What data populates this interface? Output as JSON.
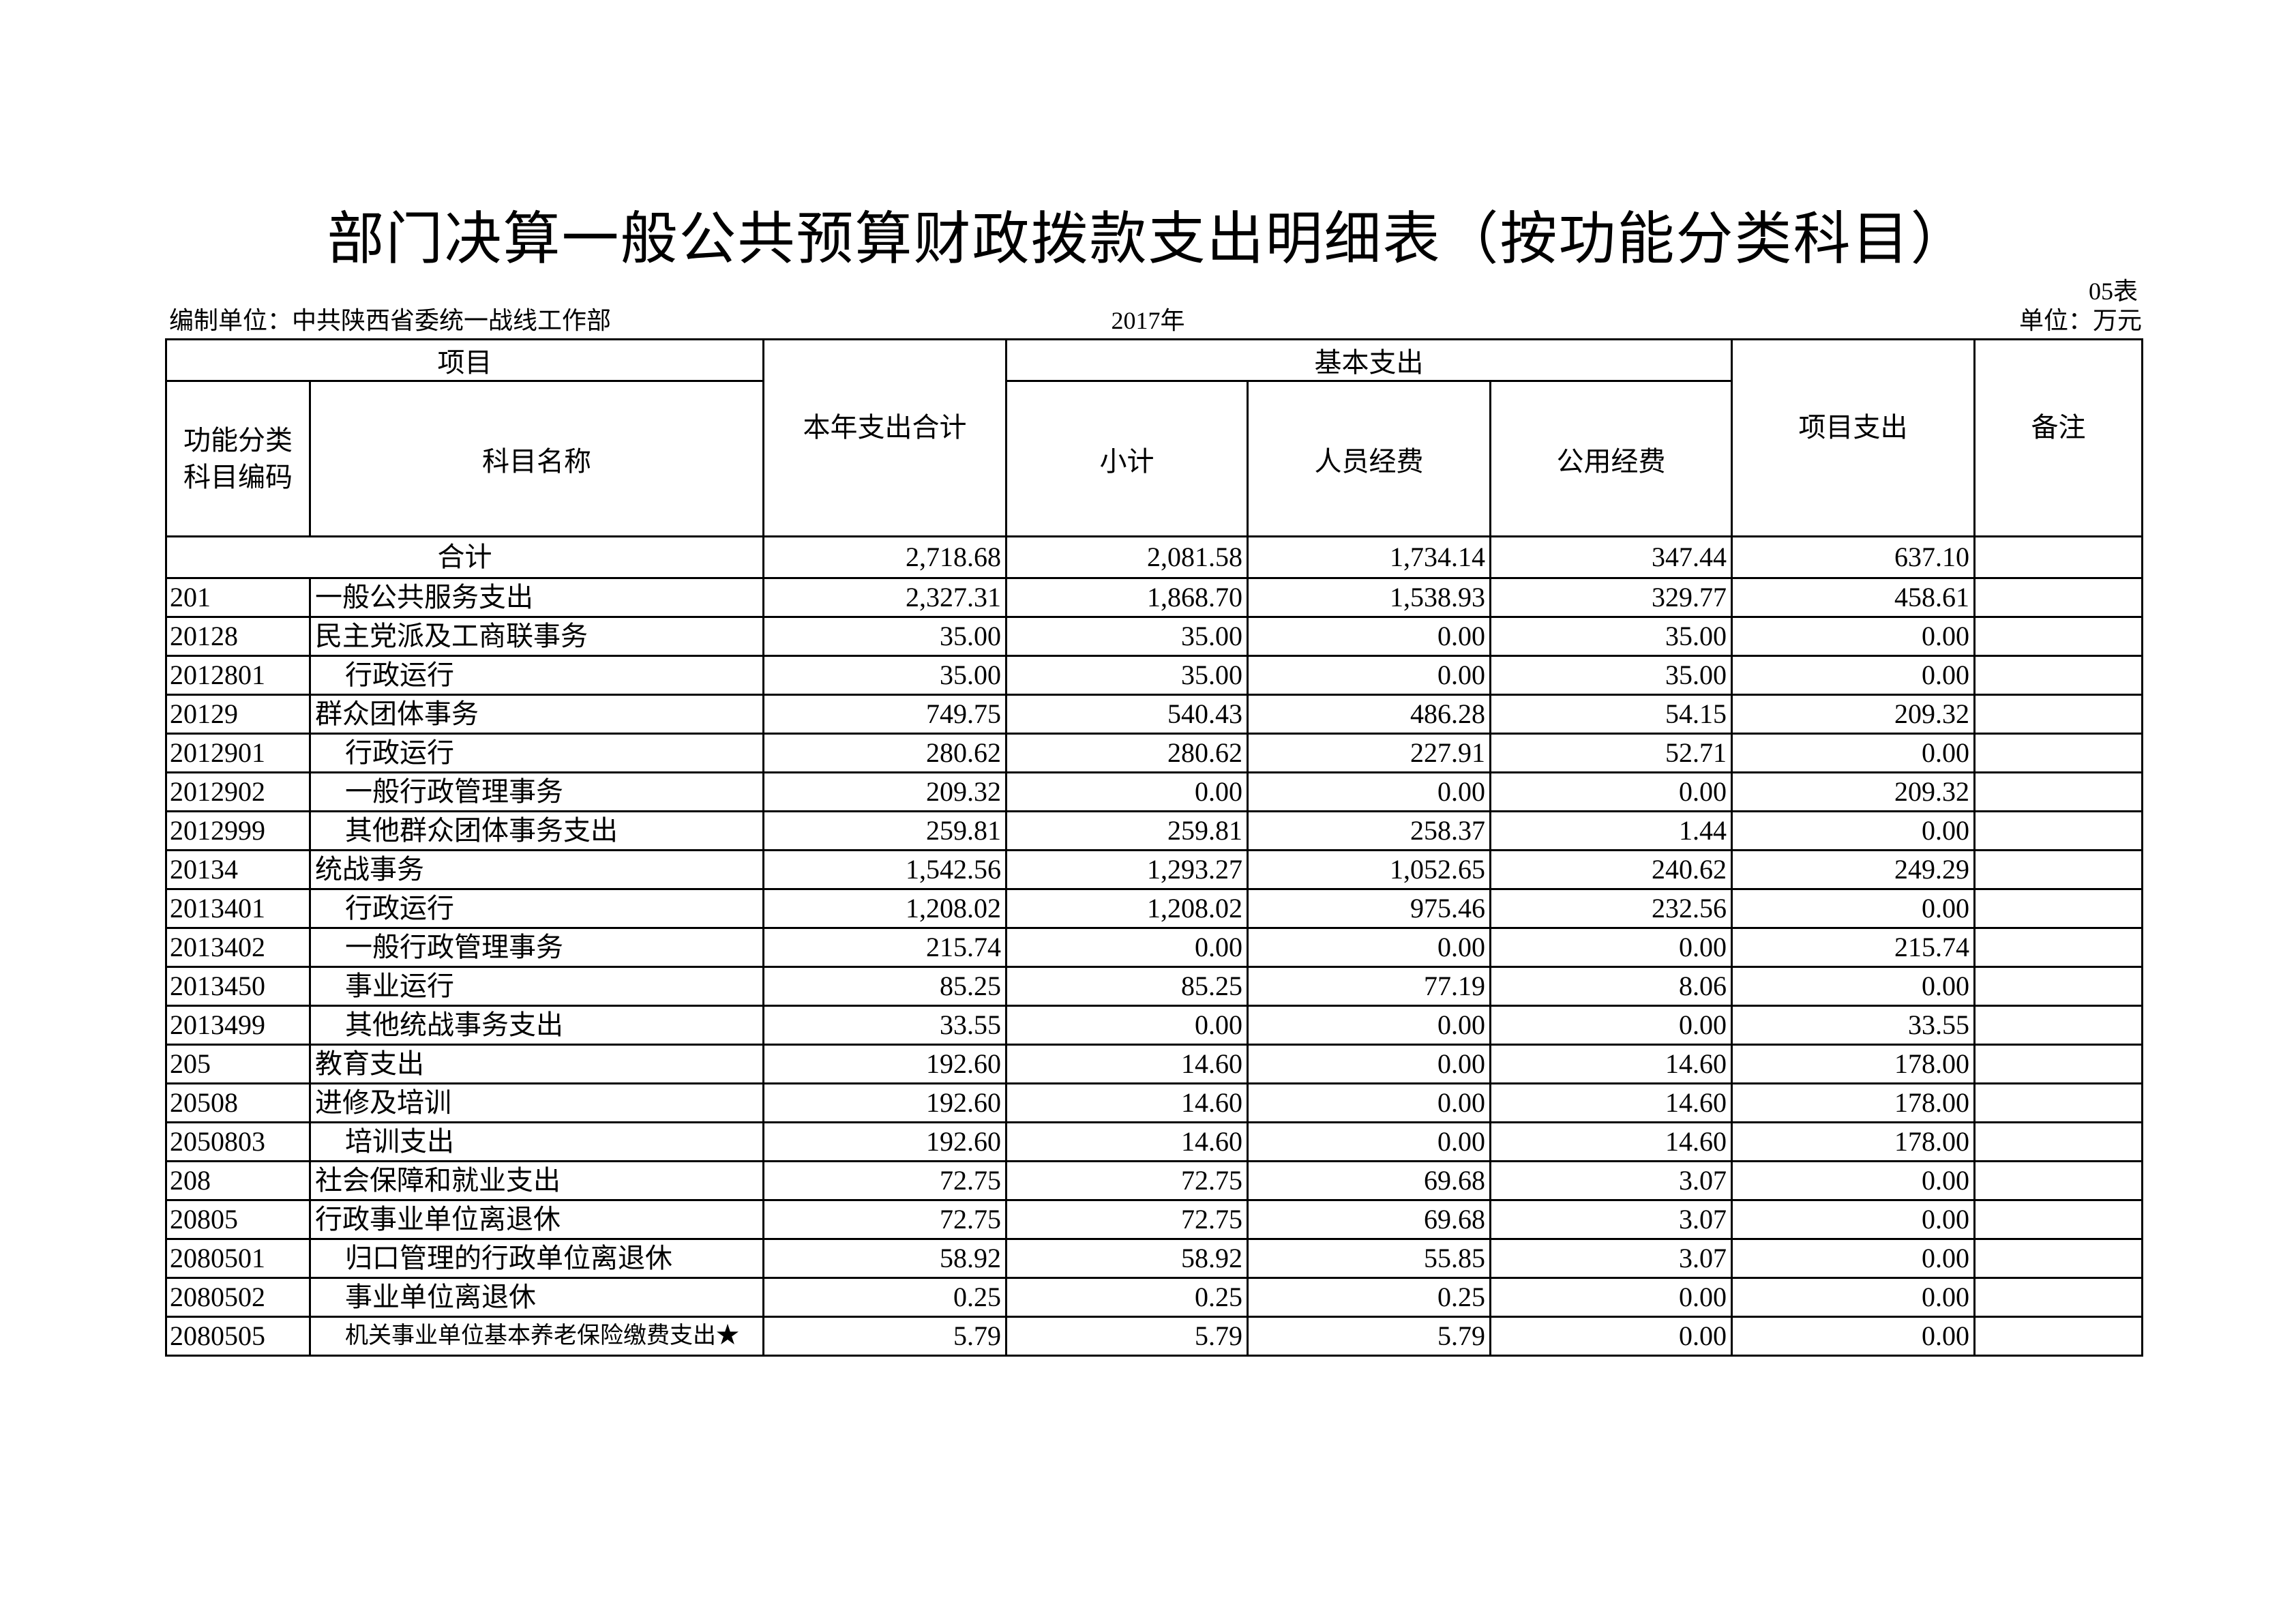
{
  "title": "部门决算一般公共预算财政拨款支出明细表（按功能分类科目）",
  "table_no": "05表",
  "unit_org": "编制单位：中共陕西省委统一战线工作部",
  "year": "2017年",
  "unit": "单位：万元",
  "headers": {
    "item": "项目",
    "code": "功能分类科目编码",
    "name": "科目名称",
    "total": "本年支出合计",
    "basic": "基本支出",
    "subtotal": "小计",
    "personnel": "人员经费",
    "public": "公用经费",
    "project": "项目支出",
    "remark": "备注"
  },
  "total_row": {
    "label": "合计",
    "total": "2,718.68",
    "subtotal": "2,081.58",
    "personnel": "1,734.14",
    "public": "347.44",
    "project": "637.10",
    "remark": ""
  },
  "rows": [
    {
      "code": "201",
      "name": "一般公共服务支出",
      "level": 1,
      "total": "2,327.31",
      "subtotal": "1,868.70",
      "personnel": "1,538.93",
      "public": "329.77",
      "project": "458.61",
      "remark": ""
    },
    {
      "code": "20128",
      "name": "民主党派及工商联事务",
      "level": 2,
      "total": "35.00",
      "subtotal": "35.00",
      "personnel": "0.00",
      "public": "35.00",
      "project": "0.00",
      "remark": ""
    },
    {
      "code": "2012801",
      "name": "行政运行",
      "level": 3,
      "total": "35.00",
      "subtotal": "35.00",
      "personnel": "0.00",
      "public": "35.00",
      "project": "0.00",
      "remark": ""
    },
    {
      "code": "20129",
      "name": "群众团体事务",
      "level": 2,
      "total": "749.75",
      "subtotal": "540.43",
      "personnel": "486.28",
      "public": "54.15",
      "project": "209.32",
      "remark": ""
    },
    {
      "code": "2012901",
      "name": "行政运行",
      "level": 3,
      "total": "280.62",
      "subtotal": "280.62",
      "personnel": "227.91",
      "public": "52.71",
      "project": "0.00",
      "remark": ""
    },
    {
      "code": "2012902",
      "name": "一般行政管理事务",
      "level": 3,
      "total": "209.32",
      "subtotal": "0.00",
      "personnel": "0.00",
      "public": "0.00",
      "project": "209.32",
      "remark": ""
    },
    {
      "code": "2012999",
      "name": "其他群众团体事务支出",
      "level": 3,
      "total": "259.81",
      "subtotal": "259.81",
      "personnel": "258.37",
      "public": "1.44",
      "project": "0.00",
      "remark": ""
    },
    {
      "code": "20134",
      "name": "统战事务",
      "level": 2,
      "total": "1,542.56",
      "subtotal": "1,293.27",
      "personnel": "1,052.65",
      "public": "240.62",
      "project": "249.29",
      "remark": ""
    },
    {
      "code": "2013401",
      "name": "行政运行",
      "level": 3,
      "total": "1,208.02",
      "subtotal": "1,208.02",
      "personnel": "975.46",
      "public": "232.56",
      "project": "0.00",
      "remark": ""
    },
    {
      "code": "2013402",
      "name": "一般行政管理事务",
      "level": 3,
      "total": "215.74",
      "subtotal": "0.00",
      "personnel": "0.00",
      "public": "0.00",
      "project": "215.74",
      "remark": ""
    },
    {
      "code": "2013450",
      "name": "事业运行",
      "level": 3,
      "total": "85.25",
      "subtotal": "85.25",
      "personnel": "77.19",
      "public": "8.06",
      "project": "0.00",
      "remark": ""
    },
    {
      "code": "2013499",
      "name": "其他统战事务支出",
      "level": 3,
      "total": "33.55",
      "subtotal": "0.00",
      "personnel": "0.00",
      "public": "0.00",
      "project": "33.55",
      "remark": ""
    },
    {
      "code": "205",
      "name": "教育支出",
      "level": 1,
      "total": "192.60",
      "subtotal": "14.60",
      "personnel": "0.00",
      "public": "14.60",
      "project": "178.00",
      "remark": ""
    },
    {
      "code": "20508",
      "name": "进修及培训",
      "level": 2,
      "total": "192.60",
      "subtotal": "14.60",
      "personnel": "0.00",
      "public": "14.60",
      "project": "178.00",
      "remark": ""
    },
    {
      "code": "2050803",
      "name": "培训支出",
      "level": 3,
      "total": "192.60",
      "subtotal": "14.60",
      "personnel": "0.00",
      "public": "14.60",
      "project": "178.00",
      "remark": ""
    },
    {
      "code": "208",
      "name": "社会保障和就业支出",
      "level": 1,
      "total": "72.75",
      "subtotal": "72.75",
      "personnel": "69.68",
      "public": "3.07",
      "project": "0.00",
      "remark": ""
    },
    {
      "code": "20805",
      "name": "行政事业单位离退休",
      "level": 2,
      "total": "72.75",
      "subtotal": "72.75",
      "personnel": "69.68",
      "public": "3.07",
      "project": "0.00",
      "remark": ""
    },
    {
      "code": "2080501",
      "name": "归口管理的行政单位离退休",
      "level": 3,
      "total": "58.92",
      "subtotal": "58.92",
      "personnel": "55.85",
      "public": "3.07",
      "project": "0.00",
      "remark": ""
    },
    {
      "code": "2080502",
      "name": "事业单位离退休",
      "level": 3,
      "total": "0.25",
      "subtotal": "0.25",
      "personnel": "0.25",
      "public": "0.00",
      "project": "0.00",
      "remark": ""
    },
    {
      "code": "2080505",
      "name": "机关事业单位基本养老保险缴费支出★",
      "level": 3,
      "total": "5.79",
      "subtotal": "5.79",
      "personnel": "5.79",
      "public": "0.00",
      "project": "0.00",
      "remark": ""
    }
  ]
}
